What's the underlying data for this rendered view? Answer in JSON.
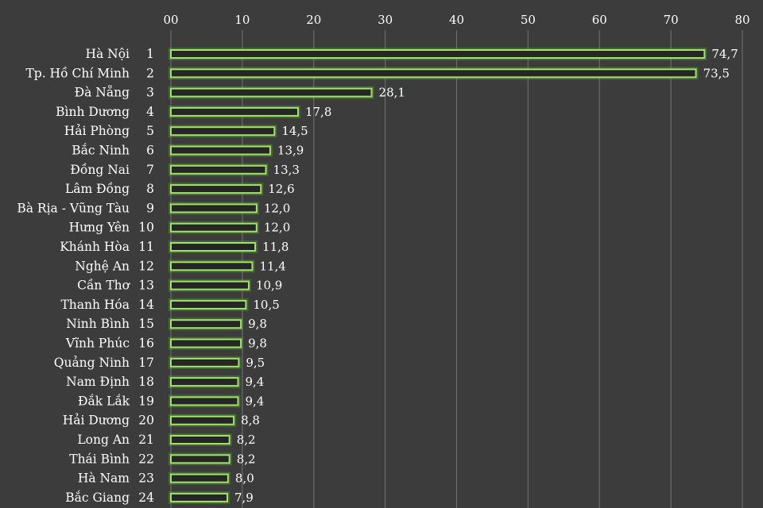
{
  "chart_data": {
    "type": "bar",
    "orientation": "horizontal",
    "xlim": [
      0,
      80
    ],
    "ticks": [
      "00",
      "10",
      "20",
      "30",
      "40",
      "50",
      "60",
      "70",
      "80"
    ],
    "grid": true,
    "colors": {
      "background": "#3c3c3c",
      "bar_stroke": "#9fe36a",
      "bar_fill": "#262626",
      "grid": "#6a6a6a",
      "text": "#ffffff"
    },
    "rows": [
      {
        "province": "Hà Nội",
        "rank": "1",
        "value": 74.7,
        "label": "74,7"
      },
      {
        "province": "Tp. Hồ Chí Minh",
        "rank": "2",
        "value": 73.5,
        "label": "73,5"
      },
      {
        "province": "Đà Nẵng",
        "rank": "3",
        "value": 28.1,
        "label": "28,1"
      },
      {
        "province": "Bình Dương",
        "rank": "4",
        "value": 17.8,
        "label": "17,8"
      },
      {
        "province": "Hải Phòng",
        "rank": "5",
        "value": 14.5,
        "label": "14,5"
      },
      {
        "province": "Bắc Ninh",
        "rank": "6",
        "value": 13.9,
        "label": "13,9"
      },
      {
        "province": "Đồng Nai",
        "rank": "7",
        "value": 13.3,
        "label": "13,3"
      },
      {
        "province": "Lâm Đồng",
        "rank": "8",
        "value": 12.6,
        "label": "12,6"
      },
      {
        "province": "Bà Rịa - Vũng Tàu",
        "rank": "9",
        "value": 12.0,
        "label": "12,0"
      },
      {
        "province": "Hưng Yên",
        "rank": "10",
        "value": 12.0,
        "label": "12,0"
      },
      {
        "province": "Khánh Hòa",
        "rank": "11",
        "value": 11.8,
        "label": "11,8"
      },
      {
        "province": "Nghệ An",
        "rank": "12",
        "value": 11.4,
        "label": "11,4"
      },
      {
        "province": "Cần Thơ",
        "rank": "13",
        "value": 10.9,
        "label": "10,9"
      },
      {
        "province": "Thanh Hóa",
        "rank": "14",
        "value": 10.5,
        "label": "10,5"
      },
      {
        "province": "Ninh Bình",
        "rank": "15",
        "value": 9.8,
        "label": "9,8"
      },
      {
        "province": "Vĩnh Phúc",
        "rank": "16",
        "value": 9.8,
        "label": "9,8"
      },
      {
        "province": "Quảng Ninh",
        "rank": "17",
        "value": 9.5,
        "label": "9,5"
      },
      {
        "province": "Nam Định",
        "rank": "18",
        "value": 9.4,
        "label": "9,4"
      },
      {
        "province": "Đắk Lắk",
        "rank": "19",
        "value": 9.4,
        "label": "9,4"
      },
      {
        "province": "Hải Dương",
        "rank": "20",
        "value": 8.8,
        "label": "8,8"
      },
      {
        "province": "Long An",
        "rank": "21",
        "value": 8.2,
        "label": "8,2"
      },
      {
        "province": "Thái Bình",
        "rank": "22",
        "value": 8.2,
        "label": "8,2"
      },
      {
        "province": "Hà Nam",
        "rank": "23",
        "value": 8.0,
        "label": "8,0"
      },
      {
        "province": "Bắc Giang",
        "rank": "24",
        "value": 7.9,
        "label": "7,9"
      }
    ]
  }
}
